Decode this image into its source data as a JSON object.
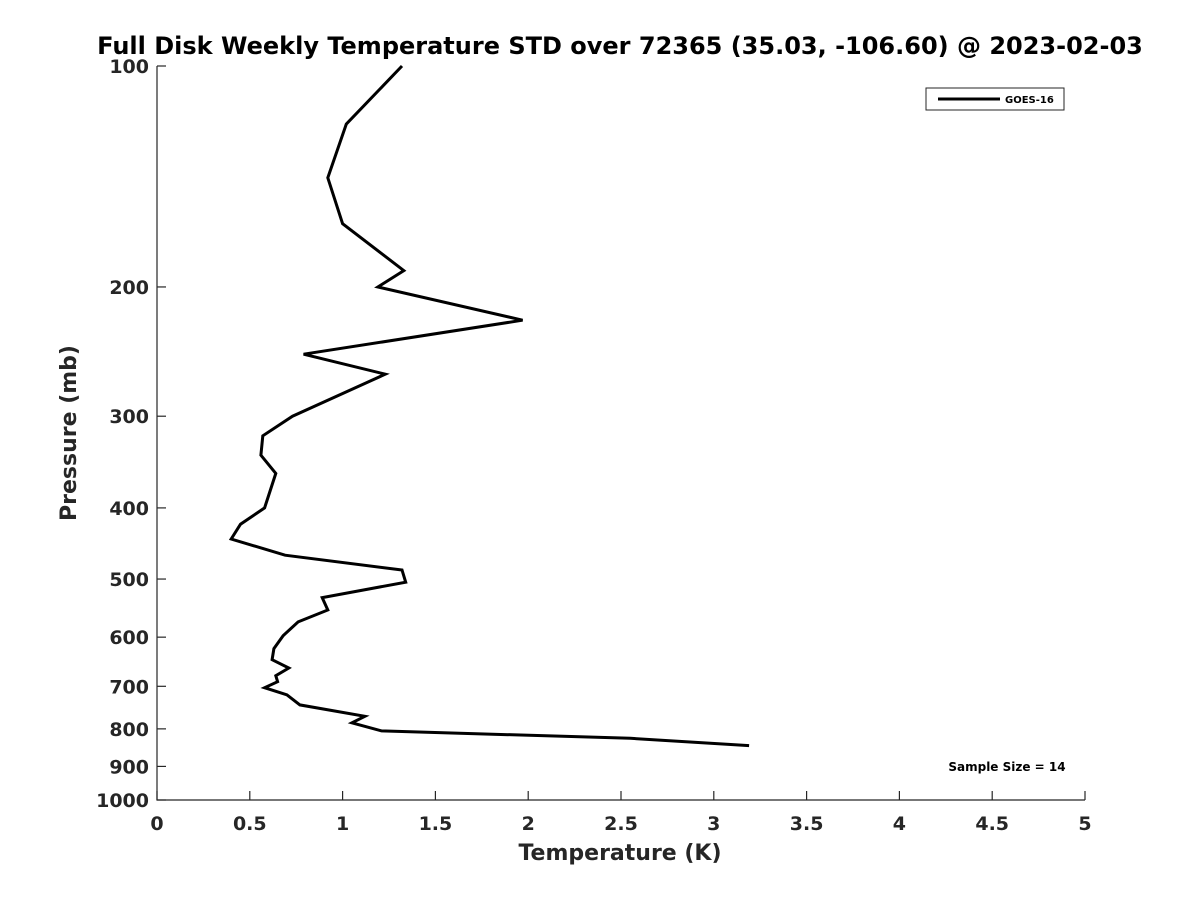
{
  "chart_data": {
    "type": "line",
    "title": "Full Disk Weekly Temperature STD over 72365 (35.03, -106.60) @ 2023-02-03",
    "xlabel": "Temperature (K)",
    "ylabel": "Pressure (mb)",
    "xlim": [
      0,
      5
    ],
    "ylim": [
      100,
      1000
    ],
    "y_scale": "log",
    "y_reversed": true,
    "x_ticks": [
      0,
      0.5,
      1,
      1.5,
      2,
      2.5,
      3,
      3.5,
      4,
      4.5,
      5
    ],
    "x_tick_labels": [
      "0",
      "0.5",
      "1",
      "1.5",
      "2",
      "2.5",
      "3",
      "3.5",
      "4",
      "4.5",
      "5"
    ],
    "y_ticks": [
      100,
      200,
      300,
      400,
      500,
      600,
      700,
      800,
      900,
      1000
    ],
    "y_tick_labels": [
      "100",
      "200",
      "300",
      "400",
      "500",
      "600",
      "700",
      "800",
      "900",
      "1000"
    ],
    "grid": false,
    "legend_position": "top-right",
    "series": [
      {
        "name": "GOES-16",
        "color": "#000000",
        "points": [
          [
            1.32,
            100
          ],
          [
            1.02,
            120
          ],
          [
            0.92,
            142
          ],
          [
            1.0,
            164
          ],
          [
            1.33,
            190
          ],
          [
            1.19,
            200
          ],
          [
            1.97,
            222
          ],
          [
            0.79,
            247
          ],
          [
            1.23,
            263
          ],
          [
            0.73,
            300
          ],
          [
            0.57,
            319
          ],
          [
            0.56,
            339
          ],
          [
            0.64,
            359
          ],
          [
            0.58,
            400
          ],
          [
            0.45,
            421
          ],
          [
            0.4,
            441
          ],
          [
            0.69,
            464
          ],
          [
            1.32,
            486
          ],
          [
            1.34,
            505
          ],
          [
            0.89,
            530
          ],
          [
            0.92,
            551
          ],
          [
            0.76,
            572
          ],
          [
            0.68,
            597
          ],
          [
            0.63,
            622
          ],
          [
            0.62,
            644
          ],
          [
            0.71,
            661
          ],
          [
            0.64,
            677
          ],
          [
            0.65,
            690
          ],
          [
            0.58,
            703
          ],
          [
            0.7,
            719
          ],
          [
            0.77,
            742
          ],
          [
            1.12,
            769
          ],
          [
            1.05,
            785
          ],
          [
            1.21,
            805
          ],
          [
            2.55,
            824
          ],
          [
            3.19,
            843
          ]
        ]
      }
    ],
    "annotations": [
      {
        "text": "Sample Size = 14",
        "position": "bottom-right"
      }
    ]
  }
}
